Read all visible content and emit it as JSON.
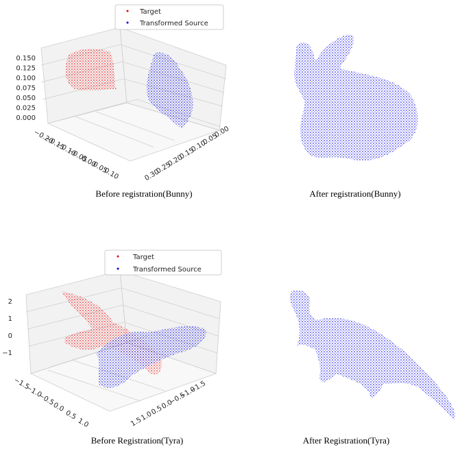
{
  "panels": [
    {
      "legend": [
        "Target",
        "Transformed Source"
      ],
      "z_ticks": [
        "0.150",
        "0.125",
        "0.100",
        "0.075",
        "0.050",
        "0.025",
        "0.000"
      ],
      "x_ticks": [
        "−0.20",
        "−0.15",
        "−0.10",
        "−0.05",
        "0.00",
        "0.05",
        "0.10"
      ],
      "y_ticks": [
        "0.00",
        "0.05",
        "0.10",
        "0.15",
        "0.20",
        "0.25",
        "0.30"
      ],
      "caption": "Before registration(Bunny)"
    },
    {
      "caption": "After registration(Bunny)"
    },
    {
      "legend": [
        "Target",
        "Transformed Source"
      ],
      "z_ticks": [
        "2",
        "1",
        "0",
        "−1"
      ],
      "x_ticks": [
        "−1.5",
        "−1.0",
        "−0.5",
        "0.0",
        "0.5",
        "1.0"
      ],
      "y_ticks": [
        "−1.5",
        "−1.0",
        "−0.5",
        "0.0",
        "0.5",
        "1.0",
        "1.5"
      ],
      "caption": "Before Registration(Tyra)"
    },
    {
      "caption": "After Registration(Tyra)"
    }
  ]
}
